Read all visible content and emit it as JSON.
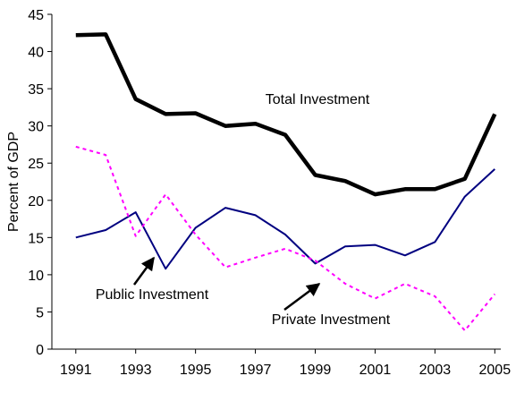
{
  "chart_data": {
    "type": "line",
    "y_label": "Percent of GDP",
    "x": [
      1991,
      1992,
      1993,
      1994,
      1995,
      1996,
      1997,
      1998,
      1999,
      2000,
      2001,
      2002,
      2003,
      2004,
      2005
    ],
    "xlim": [
      1990.2,
      2005.2
    ],
    "xticks": [
      1991,
      1993,
      1995,
      1997,
      1999,
      2001,
      2003,
      2005
    ],
    "ylim": [
      0,
      45
    ],
    "yticks": [
      0,
      5,
      10,
      15,
      20,
      25,
      30,
      35,
      40,
      45
    ],
    "grid": false,
    "series": [
      {
        "name": "Total Investment",
        "color": "#000000",
        "dashed": false,
        "values": [
          42.2,
          42.3,
          33.6,
          31.6,
          31.7,
          30.0,
          30.3,
          28.8,
          23.4,
          22.6,
          20.8,
          21.5,
          21.5,
          22.9,
          31.6
        ]
      },
      {
        "name": "Public Investment",
        "color": "#000080",
        "dashed": false,
        "values": [
          15.0,
          16.0,
          18.4,
          10.8,
          16.3,
          19.0,
          18.0,
          15.4,
          11.5,
          13.8,
          14.0,
          12.6,
          14.4,
          20.5,
          24.2
        ]
      },
      {
        "name": "Private Investment",
        "color": "#ff00ff",
        "dashed": true,
        "values": [
          27.2,
          26.1,
          15.2,
          20.8,
          15.4,
          11.0,
          12.3,
          13.5,
          11.9,
          8.8,
          6.8,
          8.8,
          7.1,
          2.5,
          7.4
        ]
      }
    ]
  }
}
